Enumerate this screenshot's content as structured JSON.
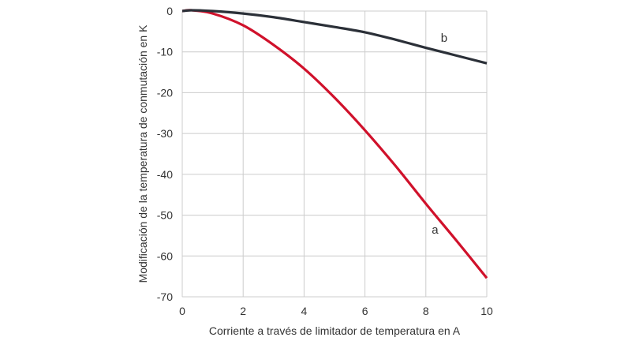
{
  "chart_data": {
    "type": "line",
    "title": "",
    "xlabel": "Corriente a través de limitador de temperatura en A",
    "ylabel": "Modificación de la temperatura de conmutación en K",
    "xlim": [
      0,
      10
    ],
    "ylim": [
      -70,
      0
    ],
    "xticks": [
      0,
      2,
      4,
      6,
      8,
      10
    ],
    "yticks": [
      0,
      -10,
      -20,
      -30,
      -40,
      -50,
      -60,
      -70
    ],
    "grid": true,
    "legend": "inline labels",
    "series": [
      {
        "name": "a",
        "color": "#d0112b",
        "x": [
          0,
          0.3,
          1,
          2,
          3,
          4,
          5,
          6,
          7,
          8,
          9,
          10
        ],
        "y": [
          0,
          0.2,
          -0.6,
          -3.5,
          -8.3,
          -14.1,
          -21.2,
          -29.2,
          -37.9,
          -47.2,
          -56.2,
          -65.4
        ]
      },
      {
        "name": "b",
        "color": "#2b3038",
        "x": [
          0,
          0.3,
          1,
          2,
          3,
          4,
          5,
          6,
          7,
          8,
          9,
          10
        ],
        "y": [
          0,
          0.2,
          0,
          -0.6,
          -1.5,
          -2.7,
          -3.9,
          -5.2,
          -7.0,
          -9.0,
          -10.9,
          -12.8
        ]
      }
    ],
    "annotations": [
      {
        "text": "a",
        "x": 8.3,
        "y": -54.5
      },
      {
        "text": "b",
        "x": 8.6,
        "y": -7.5
      }
    ]
  }
}
